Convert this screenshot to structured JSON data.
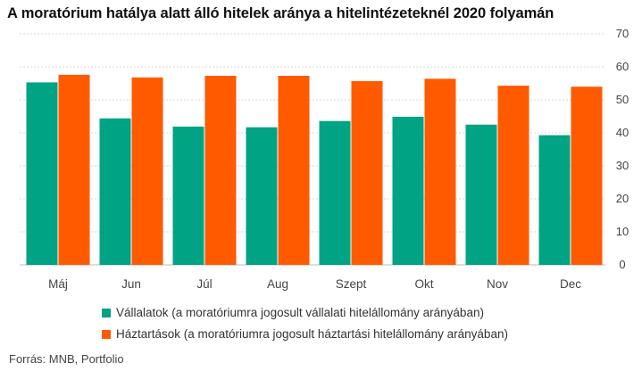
{
  "title": "A moratórium hatálya alatt álló hitelek aránya a hitelintézeteknél 2020 folyamán",
  "source": "Forrás: MNB, Portfolio",
  "colors": {
    "series1": "#00a383",
    "series2": "#ff5a00",
    "grid": "#d9d9d9",
    "text": "#444444"
  },
  "chart_data": {
    "type": "bar",
    "categories": [
      "Máj",
      "Jun",
      "Júl",
      "Aug",
      "Szept",
      "Okt",
      "Nov",
      "Dec"
    ],
    "series": [
      {
        "name": "Vállalatok (a moratóriumra jogosult vállalati hitelállomány arányában)",
        "color": "#00a383",
        "values": [
          55.3,
          44.4,
          41.9,
          41.7,
          43.6,
          44.9,
          42.5,
          39.3
        ]
      },
      {
        "name": "Háztartások (a moratóriumra jogosult háztartási hitelállomány arányában)",
        "color": "#ff5a00",
        "values": [
          57.6,
          56.8,
          57.3,
          57.3,
          55.7,
          56.4,
          54.3,
          54.0
        ]
      }
    ],
    "yticks": [
      0,
      10,
      20,
      30,
      40,
      50,
      60,
      70
    ],
    "ylim": [
      0,
      70
    ],
    "axis_side": "right",
    "grid": true,
    "legend_position": "bottom"
  }
}
